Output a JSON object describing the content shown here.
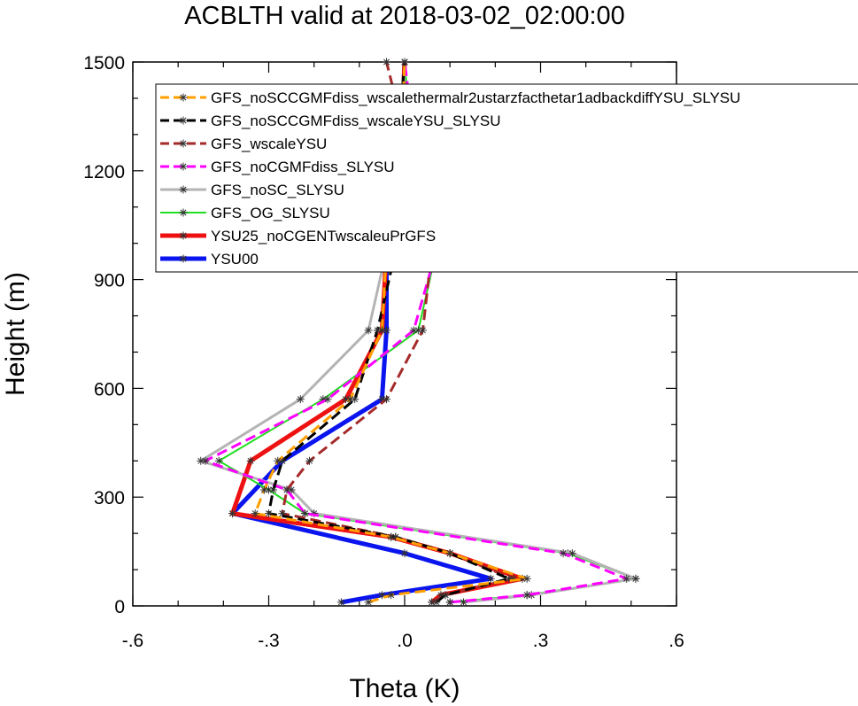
{
  "chart_data": {
    "type": "line",
    "title": "ACBLTH valid at 2018-03-02_02:00:00",
    "xlabel": "Theta (K)",
    "ylabel": "Height (m)",
    "xlim": [
      -0.6,
      0.6
    ],
    "ylim": [
      0,
      1500
    ],
    "x_ticks": [
      -0.6,
      -0.3,
      0.0,
      0.3,
      0.6
    ],
    "x_tick_labels": [
      "-.6",
      "-.3",
      ".0",
      ".3",
      ".6"
    ],
    "y_ticks": [
      0,
      300,
      600,
      900,
      1200,
      1500
    ],
    "y_tick_labels": [
      "0",
      "300",
      "600",
      "900",
      "1200",
      "1500"
    ],
    "grid": false,
    "legend_position": "top",
    "series": [
      {
        "name": "GFS_noSCCGMFdiss_wscalethermalr2ustarzfacthetar1adbackdiffYSU_SLYSU",
        "color": "#ff9f00",
        "dash": "dashed",
        "width": 3,
        "points": [
          [
            -0.08,
            10
          ],
          [
            -0.03,
            30
          ],
          [
            0.27,
            75
          ],
          [
            0.1,
            145
          ],
          [
            -0.03,
            190
          ],
          [
            -0.33,
            255
          ],
          [
            -0.31,
            320
          ],
          [
            -0.28,
            400
          ],
          [
            -0.12,
            570
          ],
          [
            -0.05,
            760
          ],
          [
            -0.04,
            980
          ],
          [
            -0.01,
            1200
          ],
          [
            0.0,
            1500
          ]
        ]
      },
      {
        "name": "GFS_noSCCGMFdiss_wscaleYSU_SLYSU",
        "color": "#000000",
        "dash": "dashed",
        "width": 3,
        "points": [
          [
            0.07,
            10
          ],
          [
            0.09,
            30
          ],
          [
            0.23,
            75
          ],
          [
            0.1,
            145
          ],
          [
            -0.02,
            190
          ],
          [
            -0.3,
            255
          ],
          [
            -0.29,
            320
          ],
          [
            -0.27,
            400
          ],
          [
            -0.11,
            570
          ],
          [
            -0.06,
            760
          ],
          [
            -0.02,
            980
          ],
          [
            -0.02,
            1200
          ],
          [
            0.0,
            1500
          ]
        ]
      },
      {
        "name": "GFS_wscaleYSU",
        "color": "#a52a2a",
        "dash": "dashed",
        "width": 3,
        "points": [
          [
            0.06,
            10
          ],
          [
            0.09,
            30
          ],
          [
            0.24,
            75
          ],
          [
            0.1,
            145
          ],
          [
            -0.02,
            190
          ],
          [
            -0.27,
            255
          ],
          [
            -0.26,
            320
          ],
          [
            -0.21,
            400
          ],
          [
            -0.04,
            570
          ],
          [
            0.04,
            760
          ],
          [
            0.06,
            980
          ],
          [
            0.02,
            1200
          ],
          [
            -0.04,
            1500
          ]
        ]
      },
      {
        "name": "GFS_noCGMFdiss_SLYSU",
        "color": "#ff00ff",
        "dash": "dashed",
        "width": 3,
        "points": [
          [
            0.1,
            10
          ],
          [
            0.27,
            30
          ],
          [
            0.49,
            75
          ],
          [
            0.35,
            145
          ],
          [
            -0.22,
            255
          ],
          [
            -0.26,
            320
          ],
          [
            -0.44,
            400
          ],
          [
            -0.17,
            570
          ],
          [
            0.02,
            760
          ],
          [
            0.07,
            980
          ],
          [
            0.03,
            1200
          ],
          [
            0.0,
            1500
          ]
        ]
      },
      {
        "name": "GFS_noSC_SLYSU",
        "color": "#b4b4b4",
        "dash": "solid",
        "width": 3,
        "points": [
          [
            0.13,
            10
          ],
          [
            0.28,
            30
          ],
          [
            0.51,
            75
          ],
          [
            0.37,
            145
          ],
          [
            -0.2,
            255
          ],
          [
            -0.25,
            320
          ],
          [
            -0.45,
            400
          ],
          [
            -0.23,
            570
          ],
          [
            -0.08,
            760
          ],
          [
            -0.04,
            980
          ],
          [
            -0.01,
            1200
          ],
          [
            0.0,
            1500
          ]
        ]
      },
      {
        "name": "GFS_OG_SLYSU",
        "color": "#22dd22",
        "dash": "solid",
        "width": 2,
        "points": [
          [
            0.1,
            10
          ],
          [
            0.27,
            30
          ],
          [
            0.51,
            75
          ],
          [
            0.36,
            145
          ],
          [
            -0.22,
            255
          ],
          [
            -0.3,
            320
          ],
          [
            -0.41,
            400
          ],
          [
            -0.18,
            570
          ],
          [
            0.03,
            760
          ],
          [
            0.07,
            980
          ],
          [
            0.02,
            1200
          ],
          [
            0.0,
            1500
          ]
        ]
      },
      {
        "name": "YSU25_noCGENTwscaleuPrGFS",
        "color": "#ee1111",
        "dash": "solid",
        "width": 5,
        "points": [
          [
            0.06,
            10
          ],
          [
            0.08,
            30
          ],
          [
            0.26,
            75
          ],
          [
            0.1,
            145
          ],
          [
            -0.03,
            190
          ],
          [
            -0.38,
            255
          ],
          [
            -0.34,
            400
          ],
          [
            -0.13,
            570
          ],
          [
            -0.05,
            760
          ],
          [
            -0.04,
            980
          ],
          [
            -0.01,
            1200
          ],
          [
            0.0,
            1500
          ]
        ]
      },
      {
        "name": "YSU00",
        "color": "#0a14ee",
        "dash": "solid",
        "width": 5,
        "points": [
          [
            -0.14,
            10
          ],
          [
            -0.05,
            30
          ],
          [
            0.19,
            75
          ],
          [
            0.0,
            145
          ],
          [
            -0.38,
            255
          ],
          [
            -0.27,
            400
          ],
          [
            -0.05,
            570
          ],
          [
            -0.04,
            760
          ],
          [
            -0.04,
            980
          ],
          [
            -0.01,
            1200
          ],
          [
            0.0,
            1500
          ]
        ]
      }
    ]
  }
}
